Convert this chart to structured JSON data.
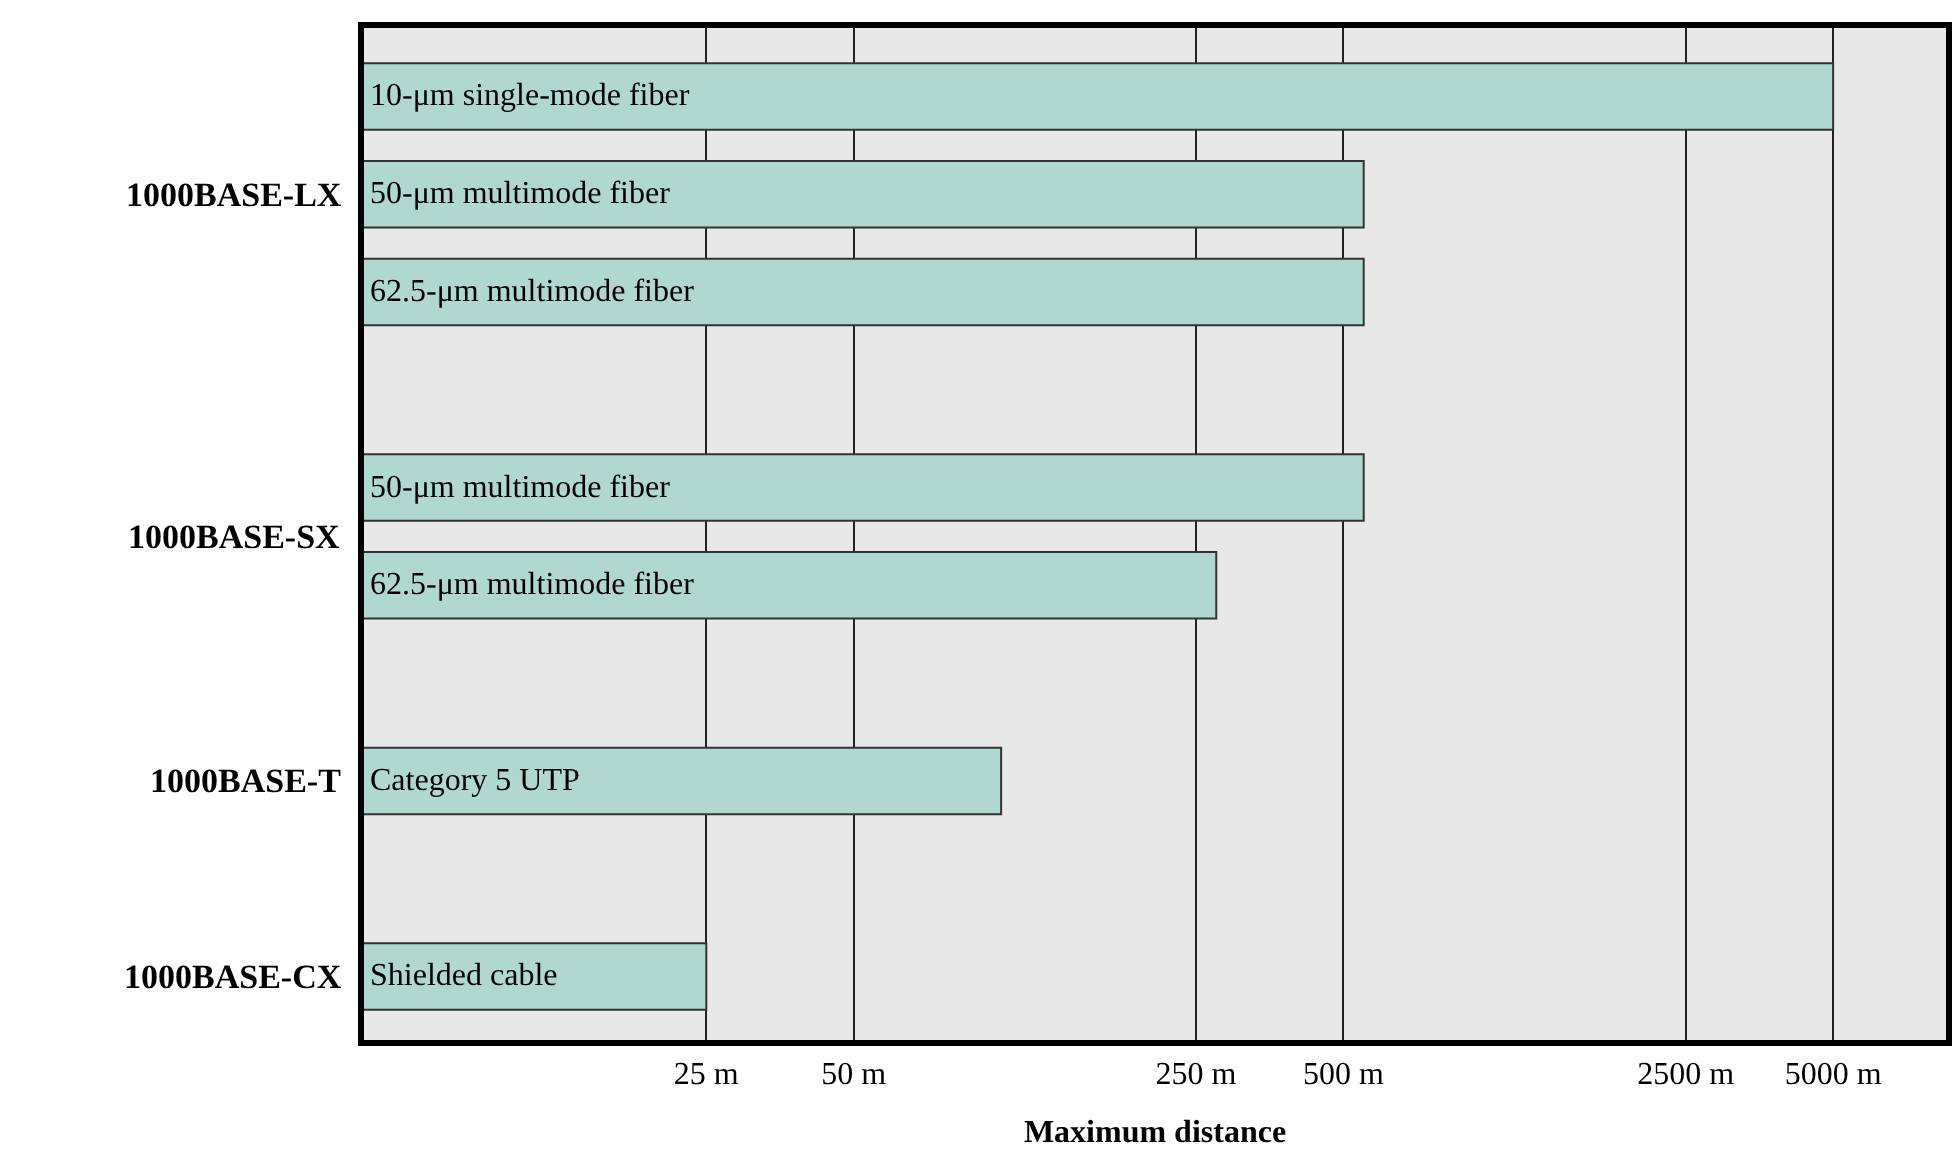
{
  "chart_data": {
    "type": "bar",
    "orientation": "horizontal",
    "log": "x",
    "xlabel": "Maximum distance",
    "categories": [
      "10-μm single-mode fiber",
      "50-μm multimode fiber",
      "62.5-μm multimode fiber",
      null,
      "50-μm multimode fiber",
      "62.5-μm multimode fiber",
      null,
      "Category 5 UTP",
      null,
      "Shielded cable"
    ],
    "values": [
      5000,
      550,
      550,
      null,
      550,
      275,
      null,
      100,
      null,
      25
    ],
    "color": "#b0d8d0",
    "annotations": [
      "1000BASE-LX",
      "1000BASE-SX",
      "1000BASE-T",
      "1000BASE-CX"
    ],
    "xlim": [
      5,
      8500
    ],
    "xticks": [
      {
        "value": 25,
        "label": "25 m"
      },
      {
        "value": 50,
        "label": "50 m"
      },
      {
        "value": 250,
        "label": "250 m"
      },
      {
        "value": 500,
        "label": "500 m"
      },
      {
        "value": 2500,
        "label": "2500 m"
      },
      {
        "value": 5000,
        "label": "5000 m"
      }
    ],
    "grid": "x",
    "tick_labels": "x",
    "legend": false
  }
}
